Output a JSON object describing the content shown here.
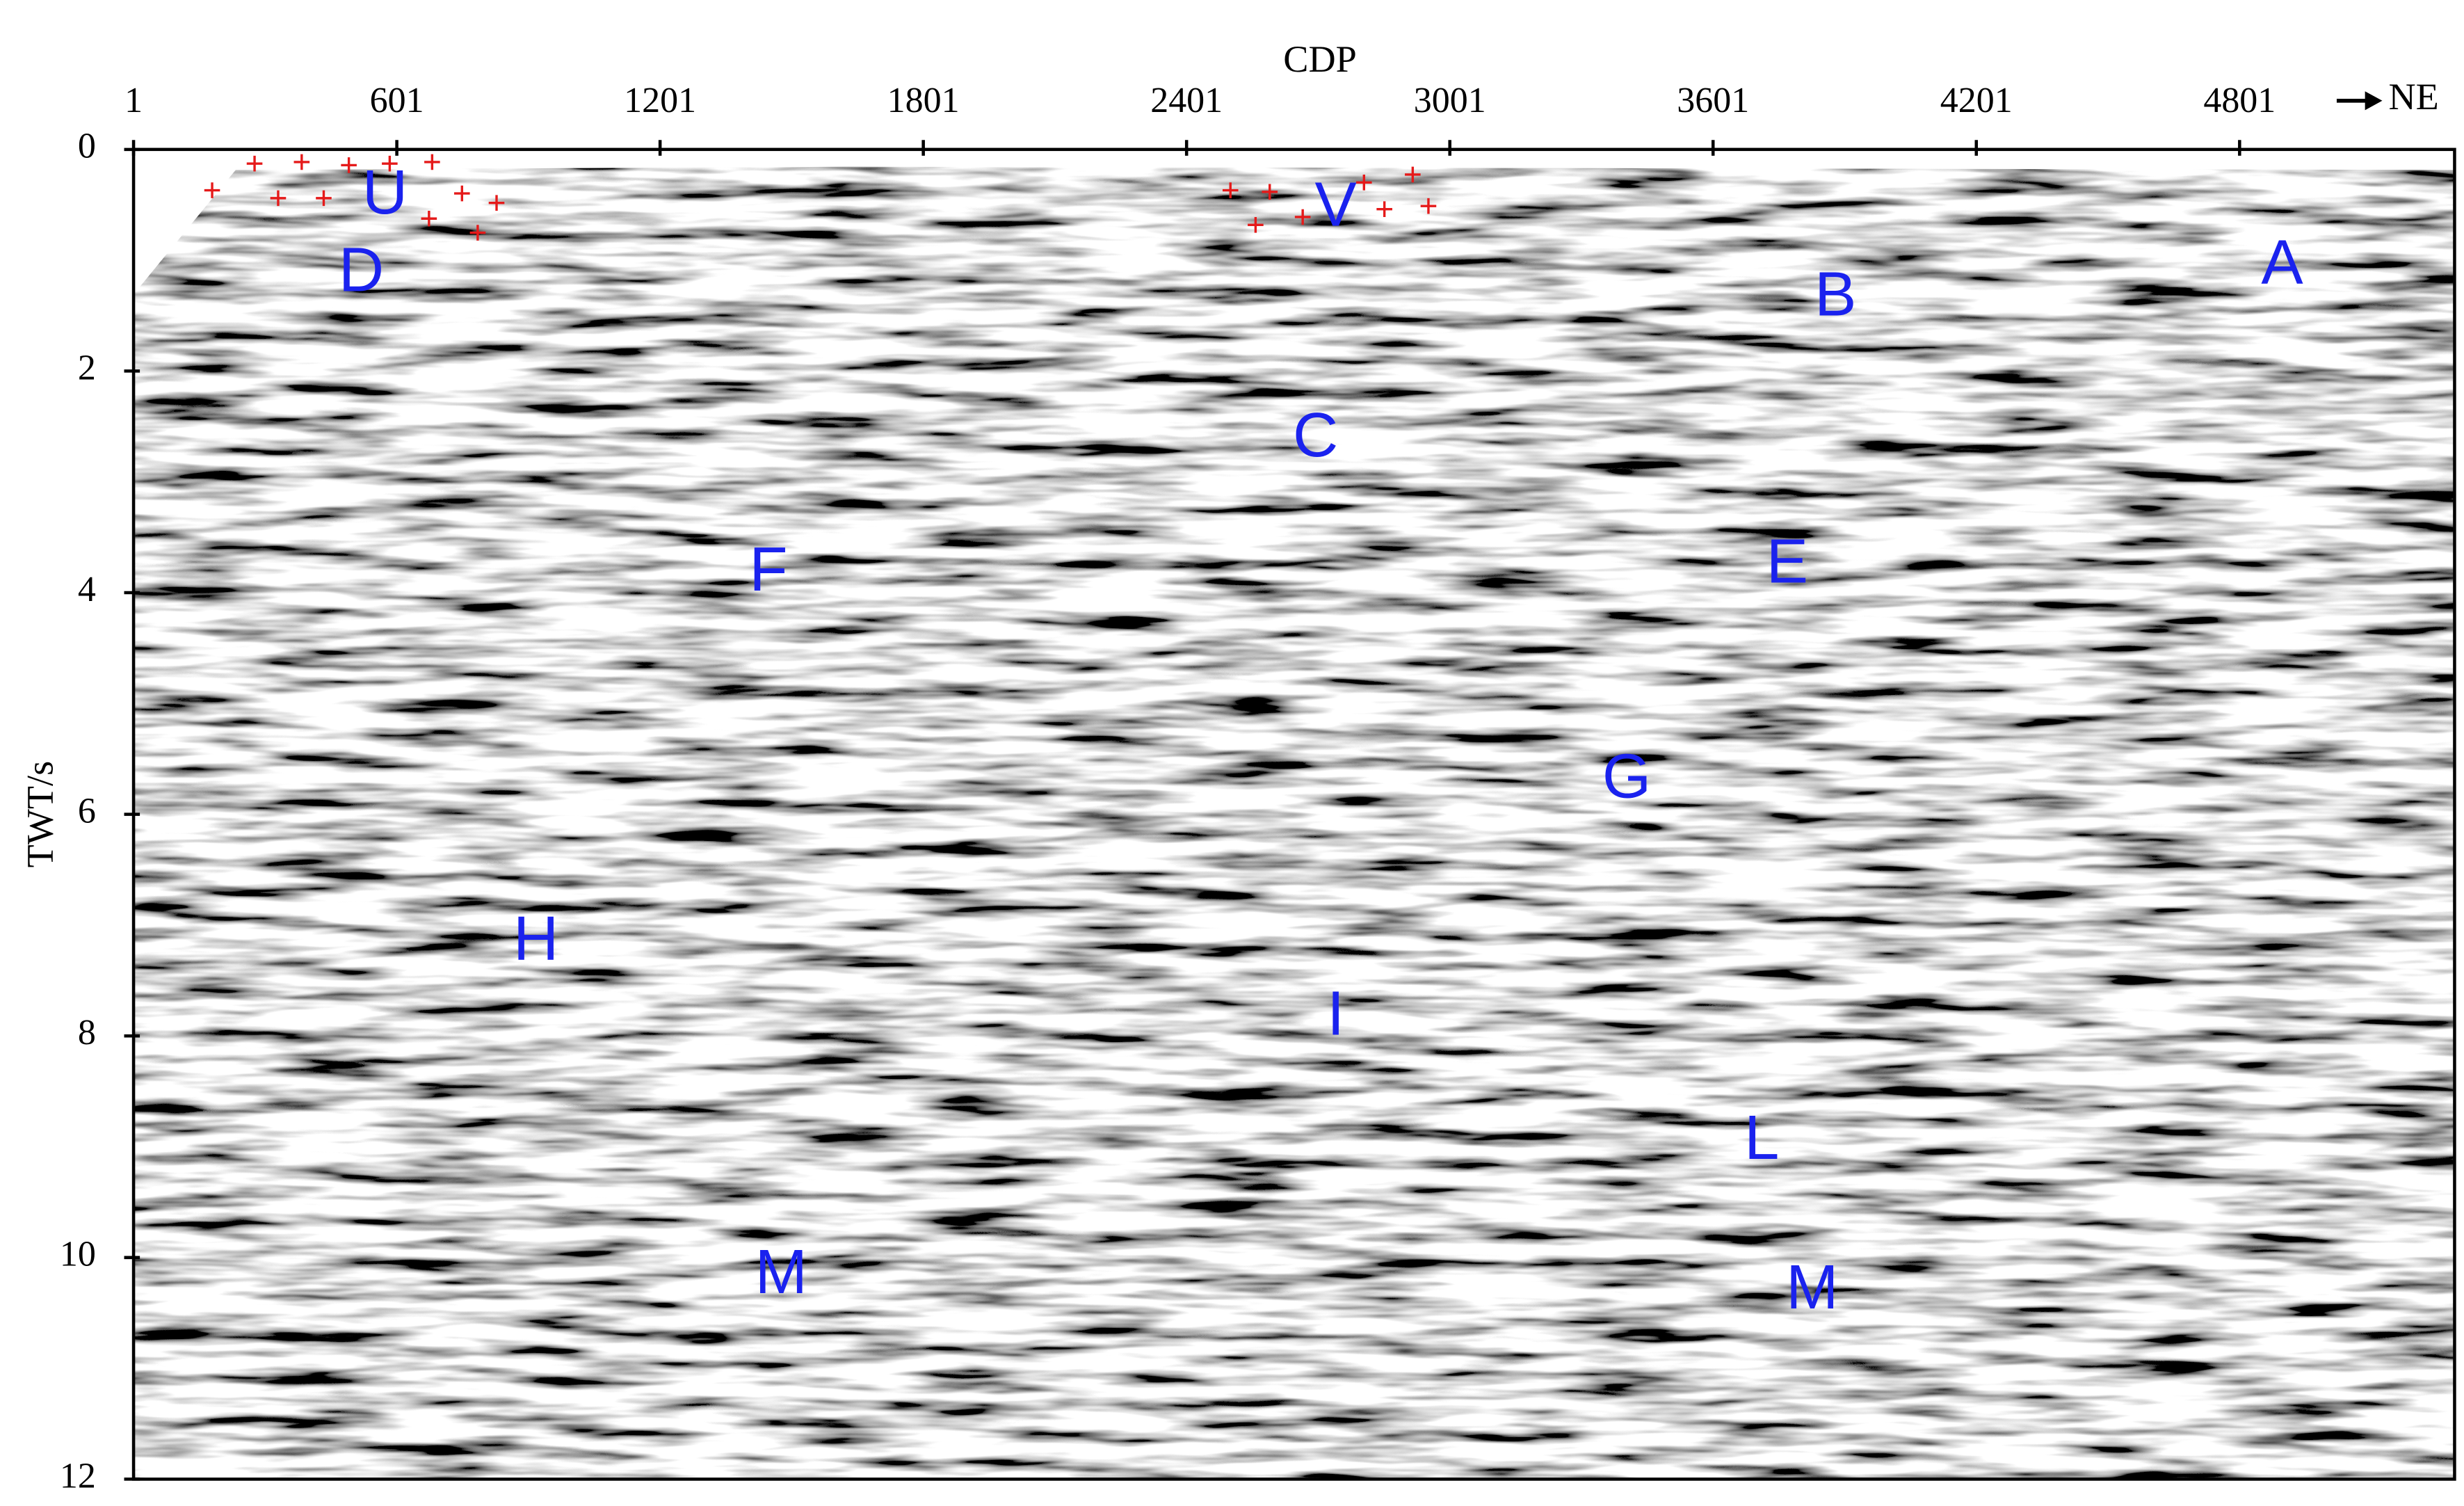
{
  "chart_data": {
    "type": "seismic-section",
    "x_label": "CDP",
    "y_label": "TWT/s",
    "direction": "NE",
    "xlim": [
      1,
      5291
    ],
    "xticks": [
      1,
      601,
      1201,
      1801,
      2401,
      3001,
      3601,
      4201,
      4801
    ],
    "ylim": [
      0,
      12
    ],
    "yticks": [
      0,
      2,
      4,
      6,
      8,
      10,
      12
    ],
    "annotation_color": "#1a22ee",
    "annotations": [
      {
        "text": "U",
        "x": 574,
        "y": 0.43
      },
      {
        "text": "D",
        "x": 520,
        "y": 1.13
      },
      {
        "text": "V",
        "x": 2741,
        "y": 0.54
      },
      {
        "text": "B",
        "x": 3880,
        "y": 1.35
      },
      {
        "text": "A",
        "x": 4898,
        "y": 1.06
      },
      {
        "text": "C",
        "x": 2695,
        "y": 2.62
      },
      {
        "text": "F",
        "x": 1448,
        "y": 3.83
      },
      {
        "text": "E",
        "x": 3770,
        "y": 3.76
      },
      {
        "text": "G",
        "x": 3404,
        "y": 5.7
      },
      {
        "text": "H",
        "x": 918,
        "y": 7.16
      },
      {
        "text": "I",
        "x": 2741,
        "y": 7.84
      },
      {
        "text": "L",
        "x": 3712,
        "y": 8.96
      },
      {
        "text": "M",
        "x": 1477,
        "y": 10.17
      },
      {
        "text": "M",
        "x": 3827,
        "y": 10.31
      }
    ]
  }
}
